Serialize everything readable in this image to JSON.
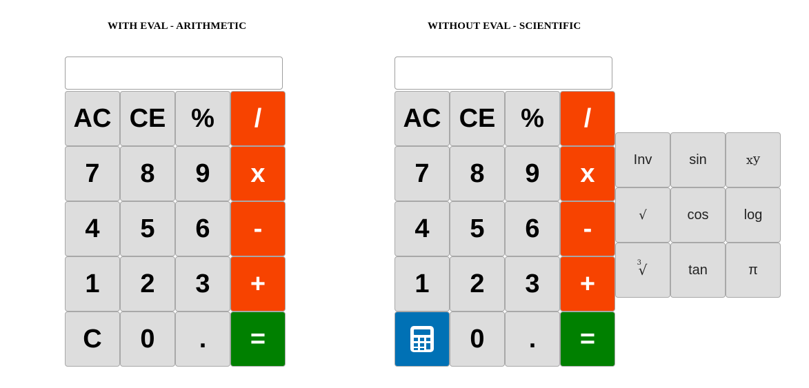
{
  "left_calc": {
    "title": "WITH EVAL - ARITHMETIC",
    "display_value": "",
    "buttons": {
      "ac": "AC",
      "ce": "CE",
      "percent": "%",
      "divide": "/",
      "seven": "7",
      "eight": "8",
      "nine": "9",
      "multiply": "x",
      "four": "4",
      "five": "5",
      "six": "6",
      "minus": "-",
      "one": "1",
      "two": "2",
      "three": "3",
      "plus": "+",
      "clear": "C",
      "zero": "0",
      "dot": ".",
      "equals": "="
    }
  },
  "right_calc": {
    "title": "WITHOUT EVAL - SCIENTIFIC",
    "display_value": "",
    "buttons": {
      "ac": "AC",
      "ce": "CE",
      "percent": "%",
      "divide": "/",
      "seven": "7",
      "eight": "8",
      "nine": "9",
      "multiply": "x",
      "four": "4",
      "five": "5",
      "six": "6",
      "minus": "-",
      "one": "1",
      "two": "2",
      "three": "3",
      "plus": "+",
      "calculator_icon": "calculator-icon",
      "zero": "0",
      "dot": ".",
      "equals": "="
    },
    "scientific": {
      "inv": "Inv",
      "sin": "sin",
      "power_base": "x",
      "power_exp": "y",
      "sqrt": "√",
      "cos": "cos",
      "log": "log",
      "cbrt_index": "3",
      "cbrt_sign": "√",
      "tan": "tan",
      "pi": "π"
    }
  },
  "colors": {
    "operator": "#f74300",
    "equals": "#008000",
    "calculator_button": "#0071b5",
    "key": "#dddddd"
  }
}
